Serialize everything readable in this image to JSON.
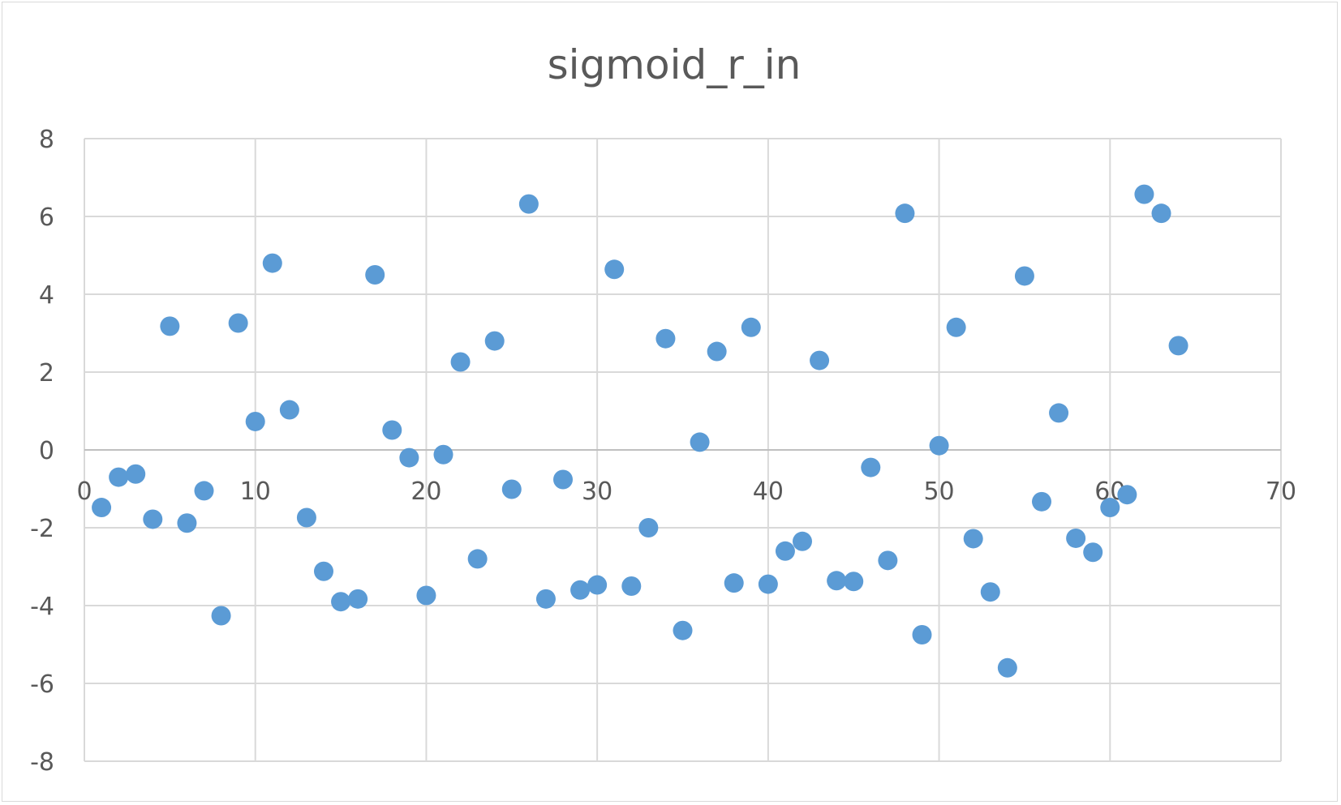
{
  "chart_data": {
    "type": "scatter",
    "title": "sigmoid_r_in",
    "xlabel": "",
    "ylabel": "",
    "xlim": [
      0,
      70
    ],
    "ylim": [
      -8,
      8
    ],
    "x_ticks": [
      0,
      10,
      20,
      30,
      40,
      50,
      60,
      70
    ],
    "y_ticks": [
      -8,
      -6,
      -4,
      -2,
      0,
      2,
      4,
      6,
      8
    ],
    "grid": true,
    "legend": "none",
    "marker_color": "#5B9BD5",
    "points": [
      {
        "x": 1,
        "y": -1.48
      },
      {
        "x": 2,
        "y": -0.7
      },
      {
        "x": 3,
        "y": -0.62
      },
      {
        "x": 4,
        "y": -1.78
      },
      {
        "x": 5,
        "y": 3.18
      },
      {
        "x": 6,
        "y": -1.88
      },
      {
        "x": 7,
        "y": -1.05
      },
      {
        "x": 8,
        "y": -4.26
      },
      {
        "x": 9,
        "y": 3.26
      },
      {
        "x": 10,
        "y": 0.73
      },
      {
        "x": 11,
        "y": 4.8
      },
      {
        "x": 12,
        "y": 1.03
      },
      {
        "x": 13,
        "y": -1.74
      },
      {
        "x": 14,
        "y": -3.12
      },
      {
        "x": 15,
        "y": -3.9
      },
      {
        "x": 16,
        "y": -3.83
      },
      {
        "x": 17,
        "y": 4.5
      },
      {
        "x": 18,
        "y": 0.51
      },
      {
        "x": 19,
        "y": -0.2
      },
      {
        "x": 20,
        "y": -3.74
      },
      {
        "x": 21,
        "y": -0.12
      },
      {
        "x": 22,
        "y": 2.26
      },
      {
        "x": 23,
        "y": -2.8
      },
      {
        "x": 24,
        "y": 2.8
      },
      {
        "x": 25,
        "y": -1.01
      },
      {
        "x": 26,
        "y": 6.32
      },
      {
        "x": 27,
        "y": -3.83
      },
      {
        "x": 28,
        "y": -0.76
      },
      {
        "x": 29,
        "y": -3.6
      },
      {
        "x": 30,
        "y": -3.47
      },
      {
        "x": 31,
        "y": 4.64
      },
      {
        "x": 32,
        "y": -3.5
      },
      {
        "x": 33,
        "y": -2.0
      },
      {
        "x": 34,
        "y": 2.86
      },
      {
        "x": 35,
        "y": -4.64
      },
      {
        "x": 36,
        "y": 0.2
      },
      {
        "x": 37,
        "y": 2.53
      },
      {
        "x": 38,
        "y": -3.42
      },
      {
        "x": 39,
        "y": 3.15
      },
      {
        "x": 40,
        "y": -3.45
      },
      {
        "x": 41,
        "y": -2.6
      },
      {
        "x": 42,
        "y": -2.35
      },
      {
        "x": 43,
        "y": 2.3
      },
      {
        "x": 44,
        "y": -3.36
      },
      {
        "x": 45,
        "y": -3.38
      },
      {
        "x": 46,
        "y": -0.45
      },
      {
        "x": 47,
        "y": -2.84
      },
      {
        "x": 48,
        "y": 6.08
      },
      {
        "x": 49,
        "y": -4.75
      },
      {
        "x": 50,
        "y": 0.11
      },
      {
        "x": 51,
        "y": 3.15
      },
      {
        "x": 52,
        "y": -2.28
      },
      {
        "x": 53,
        "y": -3.65
      },
      {
        "x": 54,
        "y": -5.6
      },
      {
        "x": 55,
        "y": 4.47
      },
      {
        "x": 56,
        "y": -1.33
      },
      {
        "x": 57,
        "y": 0.95
      },
      {
        "x": 58,
        "y": -2.27
      },
      {
        "x": 59,
        "y": -2.63
      },
      {
        "x": 60,
        "y": -1.48
      },
      {
        "x": 61,
        "y": -1.15
      },
      {
        "x": 62,
        "y": 6.57
      },
      {
        "x": 63,
        "y": 6.08
      },
      {
        "x": 64,
        "y": 2.68
      }
    ]
  }
}
